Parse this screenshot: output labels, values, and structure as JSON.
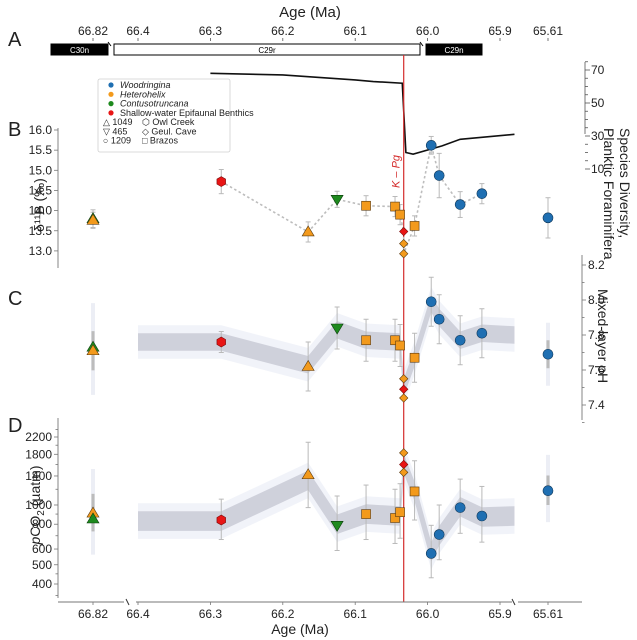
{
  "chart_data": [
    {
      "panel": "A",
      "type": "line",
      "title": "Age (Ma)",
      "x_ticks_top": [
        "66.82",
        "66.4",
        "66.3",
        "66.2",
        "66.1",
        "66.0",
        "65.9",
        "65.61"
      ],
      "chrons": [
        {
          "name": "C30n",
          "fill": "#000000",
          "text": "#ffffff",
          "segment": "left"
        },
        {
          "name": "C29r",
          "fill": "#ffffff",
          "text": "#000000",
          "segment": "middle"
        },
        {
          "name": "C29n",
          "fill": "#000000",
          "text": "#ffffff",
          "segment": "right"
        }
      ],
      "ylabel": "Species Diversity, Planktic Foraminifera",
      "y_ticks": [
        "70",
        "50",
        "30",
        "10"
      ],
      "ylim": [
        5,
        75
      ],
      "series": [
        {
          "name": "Planktic foraminifera species diversity",
          "points": [
            [
              66.3,
              68
            ],
            [
              66.2,
              67
            ],
            [
              66.1,
              64
            ],
            [
              66.075,
              63
            ],
            [
              66.035,
              62
            ],
            [
              66.03,
              20
            ],
            [
              66.02,
              19
            ],
            [
              65.98,
              24
            ],
            [
              65.955,
              28
            ],
            [
              65.88,
              31
            ]
          ]
        }
      ]
    },
    {
      "panel": "B",
      "type": "scatter",
      "ylabel": "δ¹¹B (‰)",
      "y_ticks": [
        "16.0",
        "15.5",
        "15.0",
        "14.5",
        "14.0",
        "13.5",
        "13.0"
      ],
      "ylim": [
        12.7,
        16.05
      ],
      "points": [
        {
          "age": 66.82,
          "y": 13.8,
          "err": 0.22,
          "taxon": "Contusotruncana",
          "site": "1049"
        },
        {
          "age": 66.82,
          "y": 13.76,
          "err": 0.2,
          "taxon": "Heterohelix",
          "site": "1049"
        },
        {
          "age": 66.285,
          "y": 14.72,
          "err": 0.3,
          "taxon": "Shallow-water Epifaunal Benthics",
          "site": "Owl Creek"
        },
        {
          "age": 66.165,
          "y": 13.47,
          "err": 0.25,
          "taxon": "Heterohelix",
          "site": "1049"
        },
        {
          "age": 66.125,
          "y": 14.28,
          "err": 0.2,
          "taxon": "Contusotruncana",
          "site": "465"
        },
        {
          "age": 66.085,
          "y": 14.12,
          "err": 0.25,
          "taxon": "Heterohelix",
          "site": "Brazos"
        },
        {
          "age": 66.045,
          "y": 14.1,
          "err": 0.25,
          "taxon": "Heterohelix",
          "site": "Brazos"
        },
        {
          "age": 66.038,
          "y": 13.9,
          "err": 0.25,
          "taxon": "Heterohelix",
          "site": "Brazos"
        },
        {
          "age": 66.033,
          "y": 13.48,
          "err": 0.0,
          "taxon": "Shallow-water Epifaunal Benthics",
          "site": "Geul. Cave"
        },
        {
          "age": 66.033,
          "y": 13.18,
          "err": 0.0,
          "taxon": "Heterohelix",
          "site": "Geul. Cave"
        },
        {
          "age": 66.033,
          "y": 12.93,
          "err": 0.0,
          "taxon": "Heterohelix",
          "site": "Geul. Cave"
        },
        {
          "age": 66.018,
          "y": 13.62,
          "err": 0.25,
          "taxon": "Heterohelix",
          "site": "Brazos"
        },
        {
          "age": 65.995,
          "y": 15.62,
          "err": 0.22,
          "taxon": "Woodringina",
          "site": "1209"
        },
        {
          "age": 65.984,
          "y": 14.87,
          "err": 0.55,
          "taxon": "Woodringina",
          "site": "1209"
        },
        {
          "age": 65.955,
          "y": 14.15,
          "err": 0.32,
          "taxon": "Woodringina",
          "site": "1209"
        },
        {
          "age": 65.925,
          "y": 14.42,
          "err": 0.25,
          "taxon": "Woodringina",
          "site": "1209"
        },
        {
          "age": 65.61,
          "y": 13.82,
          "err": 0.5,
          "taxon": "Woodringina",
          "site": "1209"
        }
      ],
      "dotted_line_order": [
        2,
        3,
        4,
        5,
        6,
        7,
        8,
        9,
        10,
        11,
        12,
        13,
        14,
        15
      ],
      "annotation": "K – Pg"
    },
    {
      "panel": "C",
      "type": "scatter",
      "ylabel": "Mixed-layer pH",
      "y_ticks": [
        "8.2",
        "8.0",
        "7.8",
        "7.6",
        "7.4"
      ],
      "ylim": [
        7.35,
        8.25
      ],
      "envelope": [
        [
          66.4,
          7.76
        ],
        [
          66.285,
          7.76
        ],
        [
          66.165,
          7.63
        ],
        [
          66.125,
          7.83
        ],
        [
          66.085,
          7.77
        ],
        [
          66.038,
          7.76
        ],
        [
          66.033,
          7.5
        ],
        [
          66.018,
          7.67
        ],
        [
          65.995,
          7.98
        ],
        [
          65.984,
          7.9
        ],
        [
          65.955,
          7.77
        ],
        [
          65.925,
          7.81
        ],
        [
          65.88,
          7.8
        ]
      ],
      "envelope_halfwidth": 0.05,
      "points": [
        {
          "age": 66.82,
          "y": 7.73,
          "err": 0.14,
          "taxon": "Contusotruncana",
          "site": "1049"
        },
        {
          "age": 66.82,
          "y": 7.71,
          "err": 0.14,
          "taxon": "Heterohelix",
          "site": "1049"
        },
        {
          "age": 66.285,
          "y": 7.76,
          "err": 0.06,
          "taxon": "Shallow-water Epifaunal Benthics",
          "site": "Owl Creek"
        },
        {
          "age": 66.165,
          "y": 7.62,
          "err": 0.14,
          "taxon": "Heterohelix",
          "site": "1049"
        },
        {
          "age": 66.125,
          "y": 7.84,
          "err": 0.12,
          "taxon": "Contusotruncana",
          "site": "465"
        },
        {
          "age": 66.085,
          "y": 7.77,
          "err": 0.12,
          "taxon": "Heterohelix",
          "site": "Brazos"
        },
        {
          "age": 66.045,
          "y": 7.77,
          "err": 0.12,
          "taxon": "Heterohelix",
          "site": "Brazos"
        },
        {
          "age": 66.038,
          "y": 7.74,
          "err": 0.12,
          "taxon": "Heterohelix",
          "site": "Brazos"
        },
        {
          "age": 66.033,
          "y": 7.55,
          "err": 0.0,
          "taxon": "Heterohelix",
          "site": "Geul. Cave"
        },
        {
          "age": 66.033,
          "y": 7.49,
          "err": 0.0,
          "taxon": "Shallow-water Epifaunal Benthics",
          "site": "Geul. Cave"
        },
        {
          "age": 66.033,
          "y": 7.44,
          "err": 0.0,
          "taxon": "Heterohelix",
          "site": "Geul. Cave"
        },
        {
          "age": 66.018,
          "y": 7.67,
          "err": 0.14,
          "taxon": "Heterohelix",
          "site": "Brazos"
        },
        {
          "age": 65.995,
          "y": 7.99,
          "err": 0.14,
          "taxon": "Woodringina",
          "site": "1209"
        },
        {
          "age": 65.984,
          "y": 7.89,
          "err": 0.14,
          "taxon": "Woodringina",
          "site": "1209"
        },
        {
          "age": 65.955,
          "y": 7.77,
          "err": 0.14,
          "taxon": "Woodringina",
          "site": "1209"
        },
        {
          "age": 65.925,
          "y": 7.81,
          "err": 0.14,
          "taxon": "Woodringina",
          "site": "1209"
        },
        {
          "age": 65.61,
          "y": 7.69,
          "err": 0.1,
          "taxon": "Woodringina",
          "site": "1209"
        }
      ]
    },
    {
      "panel": "D",
      "type": "scatter",
      "ylabel": "pCO₂ (µatm)",
      "y_scale": "log",
      "y_ticks": [
        "2200",
        "1800",
        "1400",
        "1000",
        "800",
        "600",
        "500",
        "400"
      ],
      "ylim": [
        330,
        2700
      ],
      "envelope": [
        [
          66.4,
          830
        ],
        [
          66.285,
          830
        ],
        [
          66.165,
          1330
        ],
        [
          66.125,
          800
        ],
        [
          66.085,
          900
        ],
        [
          66.038,
          880
        ],
        [
          66.033,
          1620
        ],
        [
          66.018,
          1170
        ],
        [
          65.995,
          580
        ],
        [
          65.984,
          700
        ],
        [
          65.955,
          980
        ],
        [
          65.925,
          870
        ],
        [
          65.88,
          880
        ]
      ],
      "envelope_halfwidth_factor": 1.12,
      "points": [
        {
          "age": 66.82,
          "y": 910,
          "err_lo": 290,
          "err_hi": 380,
          "taxon": "Heterohelix",
          "site": "1049"
        },
        {
          "age": 66.82,
          "y": 850,
          "err_lo": 0,
          "err_hi": 0,
          "taxon": "Contusotruncana",
          "site": "1049"
        },
        {
          "age": 66.285,
          "y": 840,
          "err_lo": 170,
          "err_hi": 230,
          "taxon": "Shallow-water Epifaunal Benthics",
          "site": "Owl Creek"
        },
        {
          "age": 66.165,
          "y": 1420,
          "err_lo": 450,
          "err_hi": 650,
          "taxon": "Heterohelix",
          "site": "1049"
        },
        {
          "age": 66.125,
          "y": 790,
          "err_lo": 200,
          "err_hi": 320,
          "taxon": "Contusotruncana",
          "site": "465"
        },
        {
          "age": 66.085,
          "y": 900,
          "err_lo": 230,
          "err_hi": 360,
          "taxon": "Heterohelix",
          "site": "Brazos"
        },
        {
          "age": 66.045,
          "y": 860,
          "err_lo": 220,
          "err_hi": 340,
          "taxon": "Heterohelix",
          "site": "Brazos"
        },
        {
          "age": 66.038,
          "y": 920,
          "err_lo": 240,
          "err_hi": 360,
          "taxon": "Heterohelix",
          "site": "Brazos"
        },
        {
          "age": 66.033,
          "y": 1830,
          "err_lo": 0,
          "err_hi": 0,
          "taxon": "Heterohelix",
          "site": "Geul. Cave"
        },
        {
          "age": 66.033,
          "y": 1600,
          "err_lo": 0,
          "err_hi": 0,
          "taxon": "Shallow-water Epifaunal Benthics",
          "site": "Geul. Cave"
        },
        {
          "age": 66.033,
          "y": 1460,
          "err_lo": 0,
          "err_hi": 0,
          "taxon": "Heterohelix",
          "site": "Geul. Cave"
        },
        {
          "age": 66.018,
          "y": 1170,
          "err_lo": 330,
          "err_hi": 500,
          "taxon": "Heterohelix",
          "site": "Brazos"
        },
        {
          "age": 65.995,
          "y": 570,
          "err_lo": 140,
          "err_hi": 220,
          "taxon": "Woodringina",
          "site": "1209"
        },
        {
          "age": 65.984,
          "y": 710,
          "err_lo": 180,
          "err_hi": 290,
          "taxon": "Woodringina",
          "site": "1209"
        },
        {
          "age": 65.955,
          "y": 970,
          "err_lo": 250,
          "err_hi": 380,
          "taxon": "Woodringina",
          "site": "1209"
        },
        {
          "age": 65.925,
          "y": 880,
          "err_lo": 230,
          "err_hi": 360,
          "taxon": "Woodringina",
          "site": "1209"
        },
        {
          "age": 65.61,
          "y": 1180,
          "err_lo": 300,
          "err_hi": 380,
          "taxon": "Woodringina",
          "site": "1209"
        }
      ]
    }
  ],
  "axes": {
    "x_title": "Age (Ma)",
    "x_ticks": [
      "66.82",
      "66.4",
      "66.3",
      "66.2",
      "66.1",
      "66.0",
      "65.9",
      "65.61"
    ],
    "kpg_age": 66.033,
    "kpg_label": "K – Pg"
  },
  "panel_labels": [
    "A",
    "B",
    "C",
    "D"
  ],
  "legend": {
    "taxa": [
      {
        "label": "Woodringina",
        "color": "#1f6fb2",
        "italic": true
      },
      {
        "label": "Heterohelix",
        "color": "#f39a1c",
        "italic": true
      },
      {
        "label": "Contusotruncana",
        "color": "#1e8a1e",
        "italic": true
      },
      {
        "label": "Shallow-water Epifaunal Benthics",
        "color": "#e81515",
        "italic": false
      }
    ],
    "sites": [
      {
        "symbol": "triangle-up",
        "glyph": "△",
        "label": "1049"
      },
      {
        "symbol": "triangle-down",
        "glyph": "▽",
        "label": "465"
      },
      {
        "symbol": "circle",
        "glyph": "○",
        "label": "1209"
      },
      {
        "symbol": "hexagon",
        "glyph": "⬡",
        "label": "Owl Creek"
      },
      {
        "symbol": "diamond",
        "glyph": "◇",
        "label": "Geul. Cave"
      },
      {
        "symbol": "square",
        "glyph": "□",
        "label": "Brazos"
      }
    ]
  },
  "colors": {
    "kpg_line": "#d42b2b",
    "envelope": "#c9cad6",
    "errorbar": "#b9b9b9",
    "dotted": "#bdbdbd"
  }
}
